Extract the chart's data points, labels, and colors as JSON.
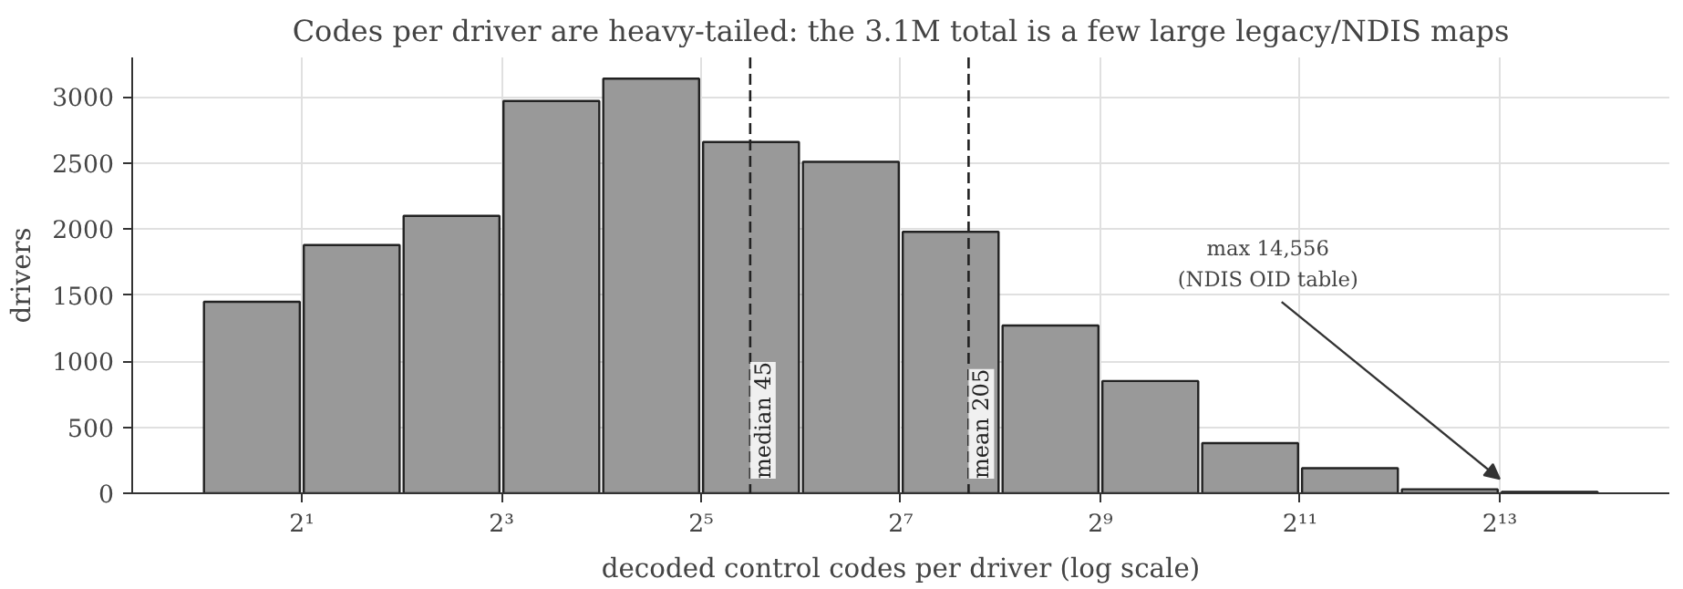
{
  "chart_data": {
    "type": "histogram",
    "title": "Codes per driver are heavy-tailed: the 3.1M total is a few large legacy/NDIS maps",
    "xlabel": "decoded control codes per driver (log scale)",
    "ylabel": "drivers",
    "bins": [
      1,
      2,
      4,
      8,
      16,
      32,
      64,
      128,
      256,
      512,
      1024,
      2048,
      4096,
      8192,
      16384
    ],
    "values": [
      1450,
      1880,
      2100,
      2970,
      3140,
      2660,
      2510,
      1980,
      1270,
      850,
      380,
      190,
      30,
      10
    ],
    "color": "#999999",
    "log": "x",
    "xlim": [
      0.616,
      26600
    ],
    "xticks": [
      {
        "value": 2,
        "label": "2¹"
      },
      {
        "value": 8,
        "label": "2³"
      },
      {
        "value": 32,
        "label": "2⁵"
      },
      {
        "value": 128,
        "label": "2⁷"
      },
      {
        "value": 512,
        "label": "2⁹"
      },
      {
        "value": 2048,
        "label": "2¹¹"
      },
      {
        "value": 8192,
        "label": "2¹³"
      }
    ],
    "ylim": [
      0,
      3300
    ],
    "yticks": [
      0,
      500,
      1000,
      1500,
      2000,
      2500,
      3000
    ],
    "grid": true,
    "ref_lines": [
      {
        "axis": "x",
        "value": 45,
        "label": "median 45",
        "color": "#222222",
        "line_style": "dashed"
      },
      {
        "axis": "x",
        "value": 205,
        "label": "mean 205",
        "color": "#222222",
        "line_style": "dashed"
      }
    ],
    "annotations": [
      "max 14,556\n(NDIS OID table)"
    ]
  }
}
